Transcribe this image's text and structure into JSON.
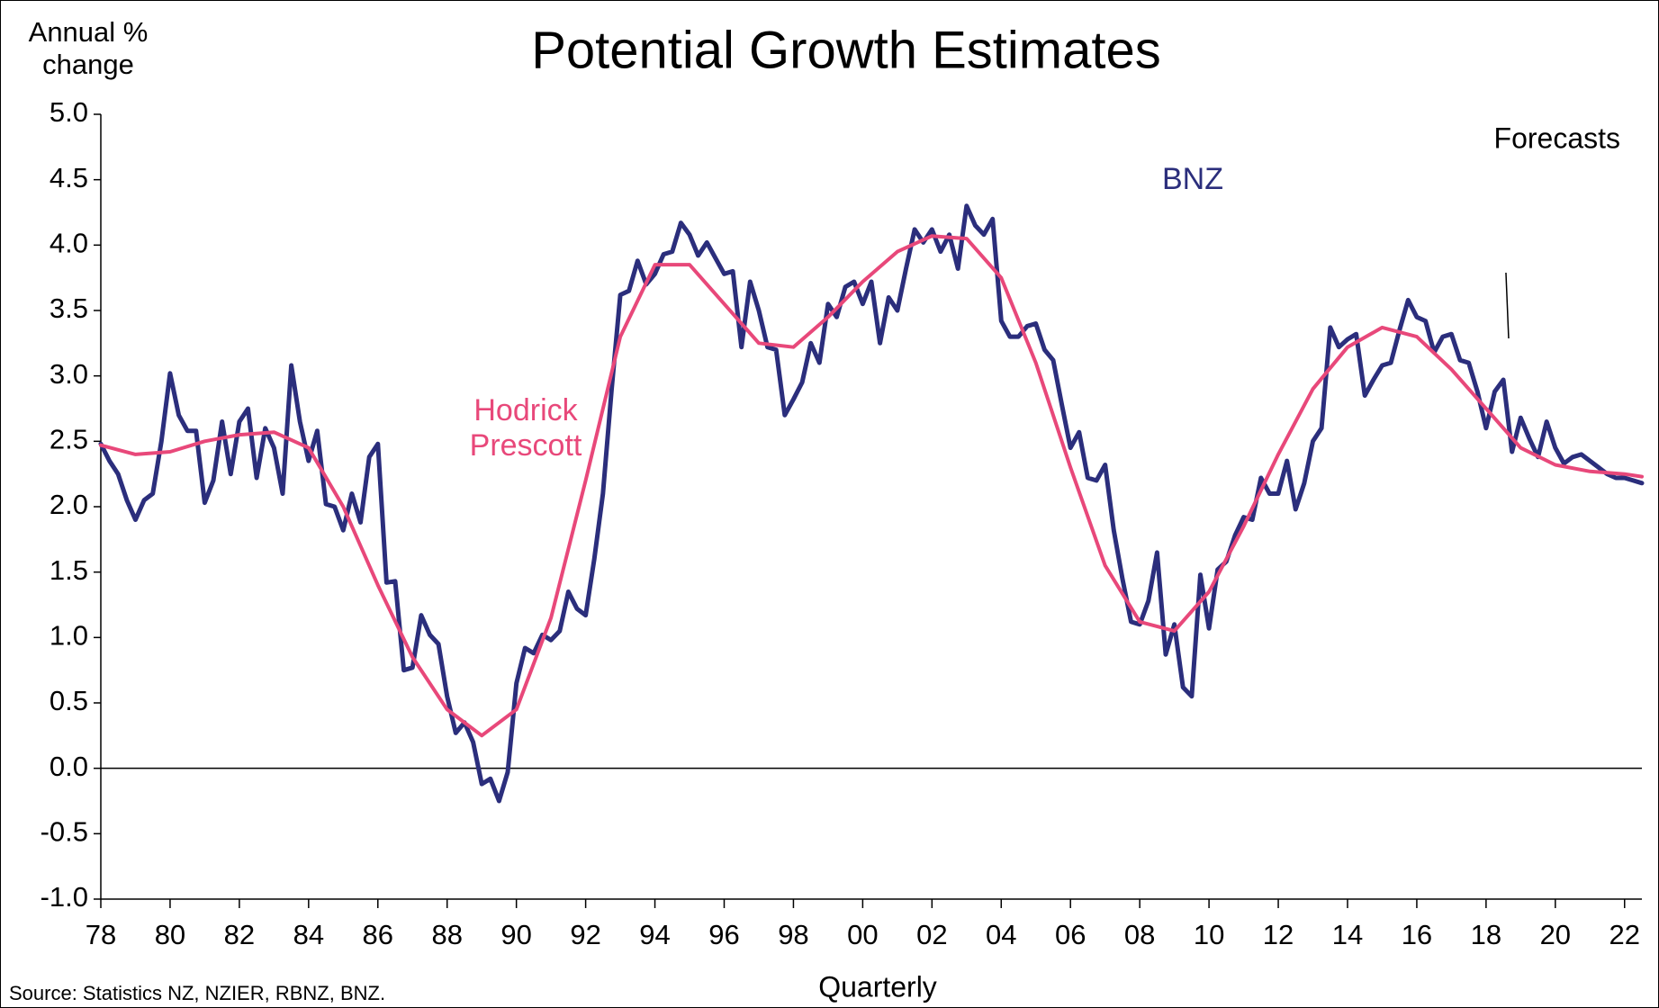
{
  "chart_data": {
    "type": "line",
    "title": "Potential  Growth Estimates",
    "y_label": "Annual % change",
    "x_label": "Quarterly",
    "source": "Source:  Statistics NZ,  NZIER,  RBNZ,  BNZ.",
    "annotations": [
      {
        "text": "Forecasts",
        "x": 2018.6
      }
    ],
    "xlim": [
      1978,
      2022.5
    ],
    "ylim": [
      -1,
      5
    ],
    "xticks": [
      {
        "value": 1978,
        "label": "78"
      },
      {
        "value": 1980,
        "label": "80"
      },
      {
        "value": 1982,
        "label": "82"
      },
      {
        "value": 1984,
        "label": "84"
      },
      {
        "value": 1986,
        "label": "86"
      },
      {
        "value": 1988,
        "label": "88"
      },
      {
        "value": 1990,
        "label": "90"
      },
      {
        "value": 1992,
        "label": "92"
      },
      {
        "value": 1994,
        "label": "94"
      },
      {
        "value": 1996,
        "label": "96"
      },
      {
        "value": 1998,
        "label": "98"
      },
      {
        "value": 2000,
        "label": "00"
      },
      {
        "value": 2002,
        "label": "02"
      },
      {
        "value": 2004,
        "label": "04"
      },
      {
        "value": 2006,
        "label": "06"
      },
      {
        "value": 2008,
        "label": "08"
      },
      {
        "value": 2010,
        "label": "10"
      },
      {
        "value": 2012,
        "label": "12"
      },
      {
        "value": 2014,
        "label": "14"
      },
      {
        "value": 2016,
        "label": "16"
      },
      {
        "value": 2018,
        "label": "18"
      },
      {
        "value": 2020,
        "label": "20"
      },
      {
        "value": 2022,
        "label": "22"
      }
    ],
    "yticks": [
      {
        "value": 5,
        "label": "5.0"
      },
      {
        "value": 4.5,
        "label": "4.5"
      },
      {
        "value": 4,
        "label": "4.0"
      },
      {
        "value": 3.5,
        "label": "3.5"
      },
      {
        "value": 3,
        "label": "3.0"
      },
      {
        "value": 2.5,
        "label": "2.5"
      },
      {
        "value": 2,
        "label": "2.0"
      },
      {
        "value": 1.5,
        "label": "1.5"
      },
      {
        "value": 1,
        "label": "1.0"
      },
      {
        "value": 0.5,
        "label": "0.5"
      },
      {
        "value": 0,
        "label": "0.0"
      },
      {
        "value": -0.5,
        "label": "-0.5"
      },
      {
        "value": -1,
        "label": "-1.0"
      }
    ],
    "series": [
      {
        "name": "BNZ",
        "color": "#2b2e7c",
        "x": [
          1978,
          1978.25,
          1978.5,
          1978.75,
          1979,
          1979.25,
          1979.5,
          1979.75,
          1980,
          1980.25,
          1980.5,
          1980.75,
          1981,
          1981.25,
          1981.5,
          1981.75,
          1982,
          1982.25,
          1982.5,
          1982.75,
          1983,
          1983.25,
          1983.5,
          1983.75,
          1984,
          1984.25,
          1984.5,
          1984.75,
          1985,
          1985.25,
          1985.5,
          1985.75,
          1986,
          1986.25,
          1986.5,
          1986.75,
          1987,
          1987.25,
          1987.5,
          1987.75,
          1988,
          1988.25,
          1988.5,
          1988.75,
          1989,
          1989.25,
          1989.5,
          1989.75,
          1990,
          1990.25,
          1990.5,
          1990.75,
          1991,
          1991.25,
          1991.5,
          1991.75,
          1992,
          1992.25,
          1992.5,
          1992.75,
          1993,
          1993.25,
          1993.5,
          1993.75,
          1994,
          1994.25,
          1994.5,
          1994.75,
          1995,
          1995.25,
          1995.5,
          1995.75,
          1996,
          1996.25,
          1996.5,
          1996.75,
          1997,
          1997.25,
          1997.5,
          1997.75,
          1998,
          1998.25,
          1998.5,
          1998.75,
          1999,
          1999.25,
          1999.5,
          1999.75,
          2000,
          2000.25,
          2000.5,
          2000.75,
          2001,
          2001.25,
          2001.5,
          2001.75,
          2002,
          2002.25,
          2002.5,
          2002.75,
          2003,
          2003.25,
          2003.5,
          2003.75,
          2004,
          2004.25,
          2004.5,
          2004.75,
          2005,
          2005.25,
          2005.5,
          2005.75,
          2006,
          2006.25,
          2006.5,
          2006.75,
          2007,
          2007.25,
          2007.5,
          2007.75,
          2008,
          2008.25,
          2008.5,
          2008.75,
          2009,
          2009.25,
          2009.5,
          2009.75,
          2010,
          2010.25,
          2010.5,
          2010.75,
          2011,
          2011.25,
          2011.5,
          2011.75,
          2012,
          2012.25,
          2012.5,
          2012.75,
          2013,
          2013.25,
          2013.5,
          2013.75,
          2014,
          2014.25,
          2014.5,
          2014.75,
          2015,
          2015.25,
          2015.5,
          2015.75,
          2016,
          2016.25,
          2016.5,
          2016.75,
          2017,
          2017.25,
          2017.5,
          2017.75,
          2018,
          2018.25,
          2018.5,
          2018.75,
          2019,
          2019.25,
          2019.5,
          2019.75,
          2020,
          2020.25,
          2020.5,
          2020.75,
          2021,
          2021.25,
          2021.5,
          2021.75,
          2022,
          2022.25,
          2022.5
        ],
        "values": [
          2.48,
          2.35,
          2.25,
          2.05,
          1.9,
          2.05,
          2.1,
          2.5,
          3.02,
          2.7,
          2.58,
          2.58,
          2.03,
          2.2,
          2.65,
          2.25,
          2.65,
          2.75,
          2.22,
          2.6,
          2.45,
          2.1,
          3.08,
          2.65,
          2.35,
          2.58,
          2.02,
          2.0,
          1.82,
          2.1,
          1.88,
          2.38,
          2.48,
          1.42,
          1.43,
          0.75,
          0.77,
          1.17,
          1.02,
          0.95,
          0.55,
          0.27,
          0.35,
          0.2,
          -0.12,
          -0.08,
          -0.25,
          -0.03,
          0.65,
          0.92,
          0.88,
          1.02,
          0.98,
          1.05,
          1.35,
          1.22,
          1.17,
          1.6,
          2.1,
          2.9,
          3.62,
          3.65,
          3.88,
          3.7,
          3.78,
          3.93,
          3.95,
          4.17,
          4.08,
          3.92,
          4.02,
          3.9,
          3.78,
          3.8,
          3.22,
          3.72,
          3.5,
          3.22,
          3.2,
          2.7,
          2.82,
          2.95,
          3.25,
          3.1,
          3.55,
          3.45,
          3.68,
          3.72,
          3.55,
          3.72,
          3.25,
          3.6,
          3.5,
          3.82,
          4.12,
          4.02,
          4.12,
          3.95,
          4.08,
          3.82,
          4.3,
          4.15,
          4.08,
          4.2,
          3.42,
          3.3,
          3.3,
          3.38,
          3.4,
          3.2,
          3.12,
          2.78,
          2.45,
          2.57,
          2.22,
          2.2,
          2.32,
          1.82,
          1.45,
          1.12,
          1.1,
          1.28,
          1.65,
          0.87,
          1.1,
          0.62,
          0.55,
          1.48,
          1.07,
          1.52,
          1.58,
          1.78,
          1.92,
          1.9,
          2.22,
          2.1,
          2.1,
          2.35,
          1.98,
          2.18,
          2.5,
          2.6,
          3.37,
          3.22,
          3.28,
          3.32,
          2.85,
          2.97,
          3.08,
          3.1,
          3.35,
          3.58,
          3.45,
          3.42,
          3.18,
          3.3,
          3.32,
          3.12,
          3.1,
          2.88,
          2.6,
          2.88,
          2.97,
          2.42,
          2.68,
          2.52,
          2.38,
          2.65,
          2.45,
          2.33,
          2.38,
          2.4,
          2.35,
          2.3,
          2.25,
          2.22,
          2.22,
          2.2,
          2.18
        ]
      },
      {
        "name": "Hodrick Prescott",
        "color": "#e8487a",
        "x": [
          1978,
          1979,
          1980,
          1981,
          1982,
          1983,
          1984,
          1985,
          1986,
          1987,
          1988,
          1989,
          1990,
          1991,
          1992,
          1993,
          1994,
          1995,
          1996,
          1997,
          1998,
          1999,
          2000,
          2001,
          2002,
          2003,
          2004,
          2005,
          2006,
          2007,
          2008,
          2009,
          2010,
          2011,
          2012,
          2013,
          2014,
          2015,
          2016,
          2017,
          2018,
          2019,
          2020,
          2021,
          2022,
          2022.5
        ],
        "values": [
          2.47,
          2.4,
          2.42,
          2.5,
          2.55,
          2.57,
          2.45,
          2.0,
          1.4,
          0.85,
          0.45,
          0.25,
          0.45,
          1.15,
          2.2,
          3.3,
          3.85,
          3.85,
          3.55,
          3.25,
          3.22,
          3.45,
          3.72,
          3.95,
          4.07,
          4.05,
          3.75,
          3.1,
          2.3,
          1.55,
          1.12,
          1.05,
          1.35,
          1.85,
          2.4,
          2.9,
          3.22,
          3.37,
          3.3,
          3.05,
          2.75,
          2.45,
          2.32,
          2.27,
          2.25,
          2.23
        ]
      }
    ]
  }
}
